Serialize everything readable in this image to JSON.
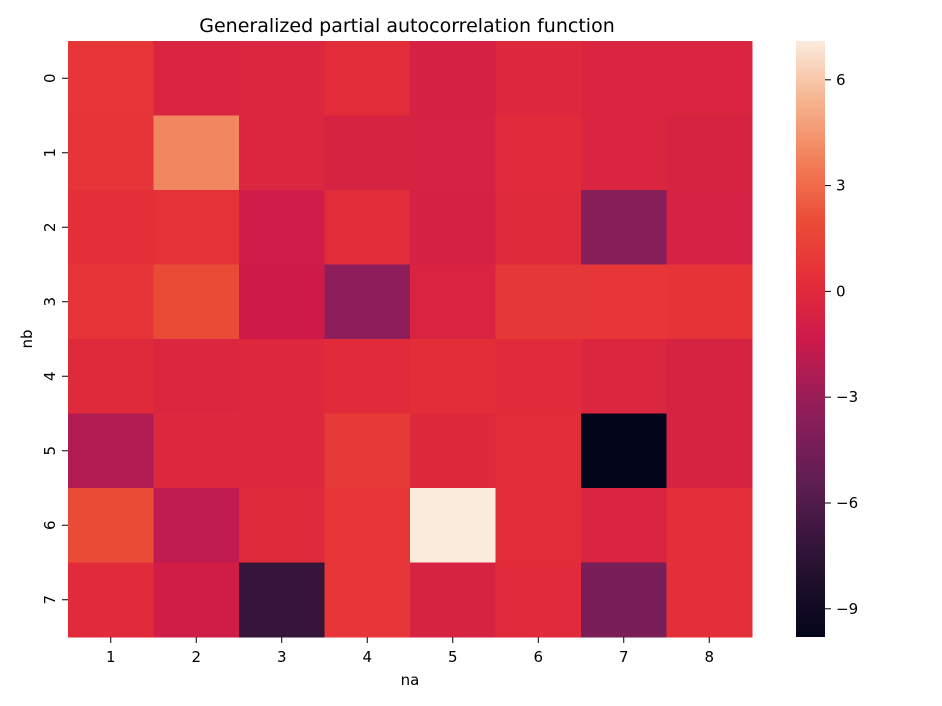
{
  "chart_data": {
    "type": "heatmap",
    "title": "Generalized partial autocorrelation function",
    "xlabel": "na",
    "ylabel": "nb",
    "x_categories": [
      "1",
      "2",
      "3",
      "4",
      "5",
      "6",
      "7",
      "8"
    ],
    "y_categories": [
      "0",
      "1",
      "2",
      "3",
      "4",
      "5",
      "6",
      "7"
    ],
    "values": [
      [
        0.8,
        -0.4,
        -0.3,
        0.2,
        -0.8,
        -0.2,
        -0.4,
        -0.4
      ],
      [
        0.7,
        3.9,
        -0.3,
        -0.6,
        -0.7,
        0.1,
        -0.4,
        -0.6
      ],
      [
        0.4,
        0.5,
        -1.2,
        0.2,
        -0.8,
        0.0,
        -3.7,
        -0.7
      ],
      [
        0.7,
        1.9,
        -1.3,
        -3.4,
        -0.5,
        0.9,
        0.8,
        0.6
      ],
      [
        0.0,
        -0.3,
        -0.2,
        0.1,
        0.3,
        0.1,
        -0.3,
        -0.6
      ],
      [
        -2.3,
        -0.2,
        -0.2,
        1.0,
        -0.1,
        0.2,
        -9.8,
        -0.6
      ],
      [
        1.9,
        -1.8,
        0.0,
        0.8,
        7.1,
        0.2,
        -0.5,
        0.4
      ],
      [
        0.1,
        -1.1,
        -7.2,
        0.8,
        -0.6,
        0.1,
        -4.3,
        0.4
      ]
    ],
    "colorbar": {
      "vmin": -9.8,
      "vmax": 7.1,
      "ticks": [
        -9,
        -6,
        -3,
        0,
        3,
        6
      ],
      "tick_labels": [
        "−9",
        "−6",
        "−3",
        "0",
        "3",
        "6"
      ],
      "colormap": "rocket"
    },
    "grid": false,
    "legend": "colorbar-right"
  }
}
